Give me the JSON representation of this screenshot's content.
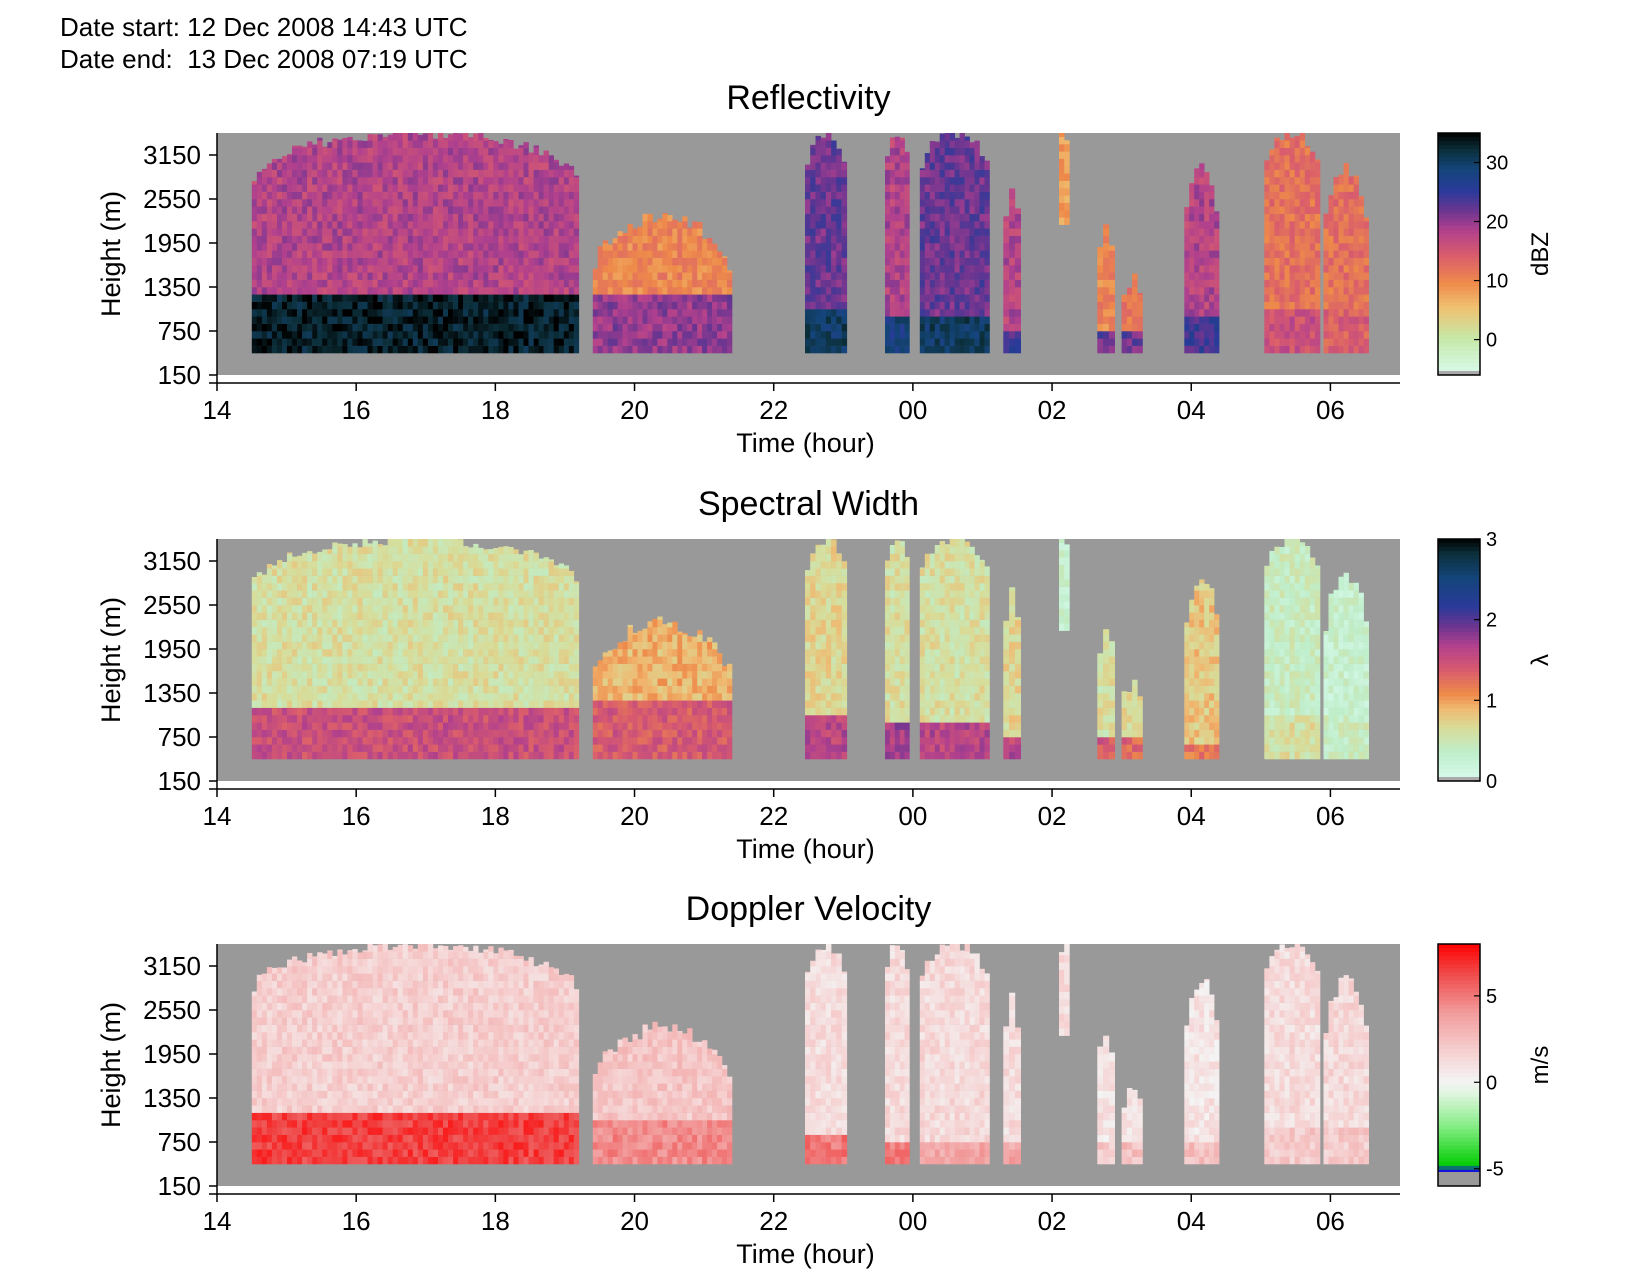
{
  "header": {
    "date_start_label": "Date start:",
    "date_start_value": "12 Dec 2008 14:43 UTC",
    "date_end_label": "Date end:",
    "date_end_value": "13 Dec 2008 07:19 UTC"
  },
  "colors": {
    "no_data": "#999999",
    "background": "#ffffff"
  },
  "chart_data": [
    {
      "type": "heatmap",
      "title": "Reflectivity",
      "xlabel": "Time (hour)",
      "ylabel": "Height (m)",
      "x_tick_labels": [
        "14",
        "16",
        "18",
        "20",
        "22",
        "00",
        "02",
        "04",
        "06"
      ],
      "y_tick_labels": [
        "3150",
        "2550",
        "1950",
        "1350",
        "750",
        "150"
      ],
      "y_ticks": [
        3150,
        2550,
        1950,
        1350,
        750,
        150
      ],
      "xlim_hours": [
        14,
        31
      ],
      "ylim": [
        150,
        3450
      ],
      "colorbar": {
        "label": "dBZ",
        "ticks": [
          30,
          20,
          10,
          0
        ],
        "range": [
          -6,
          35
        ],
        "colormap": "reflectivity"
      },
      "echo_segments": [
        {
          "start": 14.5,
          "end": 19.2,
          "base_m": 450,
          "top_m": 3450,
          "lower_top_m": 1200,
          "upper_value": 18,
          "lower_value": 33
        },
        {
          "start": 19.4,
          "end": 21.4,
          "base_m": 450,
          "top_m": 2300,
          "lower_top_m": 1200,
          "upper_value": 10,
          "lower_value": 20
        },
        {
          "start": 22.45,
          "end": 23.05,
          "base_m": 450,
          "top_m": 3450,
          "lower_top_m": 1000,
          "upper_value": 22,
          "lower_value": 30
        },
        {
          "start": 23.6,
          "end": 23.95,
          "base_m": 450,
          "top_m": 3450,
          "lower_top_m": 900,
          "upper_value": 18,
          "lower_value": 28
        },
        {
          "start": 24.1,
          "end": 25.1,
          "base_m": 450,
          "top_m": 3450,
          "lower_top_m": 900,
          "upper_value": 22,
          "lower_value": 30
        },
        {
          "start": 25.3,
          "end": 25.55,
          "base_m": 450,
          "top_m": 2700,
          "lower_top_m": 700,
          "upper_value": 18,
          "lower_value": 24
        },
        {
          "start": 26.1,
          "end": 26.25,
          "base_m": 2200,
          "top_m": 3450,
          "lower_top_m": 2200,
          "upper_value": 8,
          "lower_value": 8
        },
        {
          "start": 26.65,
          "end": 26.9,
          "base_m": 450,
          "top_m": 2200,
          "lower_top_m": 750,
          "upper_value": 10,
          "lower_value": 22
        },
        {
          "start": 27.0,
          "end": 27.3,
          "base_m": 450,
          "top_m": 1450,
          "lower_top_m": 750,
          "upper_value": 12,
          "lower_value": 22
        },
        {
          "start": 27.9,
          "end": 28.4,
          "base_m": 450,
          "top_m": 2950,
          "lower_top_m": 900,
          "upper_value": 18,
          "lower_value": 24
        },
        {
          "start": 29.05,
          "end": 29.85,
          "base_m": 450,
          "top_m": 3450,
          "lower_top_m": 1000,
          "upper_value": 12,
          "lower_value": 16
        },
        {
          "start": 29.9,
          "end": 30.55,
          "base_m": 450,
          "top_m": 2950,
          "lower_top_m": 1000,
          "upper_value": 12,
          "lower_value": 14
        }
      ]
    },
    {
      "type": "heatmap",
      "title": "Spectral Width",
      "xlabel": "Time (hour)",
      "ylabel": "Height (m)",
      "x_tick_labels": [
        "14",
        "16",
        "18",
        "20",
        "22",
        "00",
        "02",
        "04",
        "06"
      ],
      "y_tick_labels": [
        "3150",
        "2550",
        "1950",
        "1350",
        "750",
        "150"
      ],
      "y_ticks": [
        3150,
        2550,
        1950,
        1350,
        750,
        150
      ],
      "xlim_hours": [
        14,
        31
      ],
      "ylim": [
        150,
        3450
      ],
      "colorbar": {
        "label": "λ",
        "ticks": [
          3,
          2,
          1,
          0
        ],
        "range": [
          0,
          3
        ],
        "colormap": "width"
      },
      "echo_segments": [
        {
          "start": 14.5,
          "end": 19.2,
          "base_m": 450,
          "top_m": 3450,
          "lower_top_m": 1100,
          "upper_value": 0.6,
          "lower_value": 1.5
        },
        {
          "start": 19.4,
          "end": 21.4,
          "base_m": 450,
          "top_m": 2300,
          "lower_top_m": 1200,
          "upper_value": 0.9,
          "lower_value": 1.4
        },
        {
          "start": 22.45,
          "end": 23.05,
          "base_m": 450,
          "top_m": 3450,
          "lower_top_m": 1000,
          "upper_value": 0.7,
          "lower_value": 1.6
        },
        {
          "start": 23.6,
          "end": 23.95,
          "base_m": 450,
          "top_m": 3450,
          "lower_top_m": 900,
          "upper_value": 0.6,
          "lower_value": 1.7
        },
        {
          "start": 24.1,
          "end": 25.1,
          "base_m": 450,
          "top_m": 3450,
          "lower_top_m": 900,
          "upper_value": 0.6,
          "lower_value": 1.6
        },
        {
          "start": 25.3,
          "end": 25.55,
          "base_m": 450,
          "top_m": 2700,
          "lower_top_m": 700,
          "upper_value": 0.7,
          "lower_value": 1.6
        },
        {
          "start": 26.1,
          "end": 26.25,
          "base_m": 2200,
          "top_m": 3450,
          "lower_top_m": 2200,
          "upper_value": 0.3,
          "lower_value": 0.3
        },
        {
          "start": 26.65,
          "end": 26.9,
          "base_m": 450,
          "top_m": 2200,
          "lower_top_m": 750,
          "upper_value": 0.6,
          "lower_value": 1.4
        },
        {
          "start": 27.0,
          "end": 27.3,
          "base_m": 450,
          "top_m": 1450,
          "lower_top_m": 750,
          "upper_value": 0.7,
          "lower_value": 1.3
        },
        {
          "start": 27.9,
          "end": 28.4,
          "base_m": 450,
          "top_m": 2950,
          "lower_top_m": 650,
          "upper_value": 0.8,
          "lower_value": 1.2
        },
        {
          "start": 29.05,
          "end": 29.85,
          "base_m": 450,
          "top_m": 3450,
          "lower_top_m": 1000,
          "upper_value": 0.4,
          "lower_value": 0.6
        },
        {
          "start": 29.9,
          "end": 30.55,
          "base_m": 450,
          "top_m": 2950,
          "lower_top_m": 1000,
          "upper_value": 0.3,
          "lower_value": 0.4
        }
      ]
    },
    {
      "type": "heatmap",
      "title": "Doppler Velocity",
      "xlabel": "Time (hour)",
      "ylabel": "Height (m)",
      "x_tick_labels": [
        "14",
        "16",
        "18",
        "20",
        "22",
        "00",
        "02",
        "04",
        "06"
      ],
      "y_tick_labels": [
        "3150",
        "2550",
        "1950",
        "1350",
        "750",
        "150"
      ],
      "y_ticks": [
        3150,
        2550,
        1950,
        1350,
        750,
        150
      ],
      "xlim_hours": [
        14,
        31
      ],
      "ylim": [
        150,
        3450
      ],
      "colorbar": {
        "label": "m/s",
        "ticks": [
          5,
          0,
          -5
        ],
        "range": [
          -6,
          8
        ],
        "colormap": "velocity"
      },
      "echo_segments": [
        {
          "start": 14.5,
          "end": 19.2,
          "base_m": 450,
          "top_m": 3450,
          "lower_top_m": 1100,
          "upper_value": 1.8,
          "lower_value": 6.5
        },
        {
          "start": 19.4,
          "end": 21.4,
          "base_m": 450,
          "top_m": 2300,
          "lower_top_m": 1000,
          "upper_value": 2.2,
          "lower_value": 4.5
        },
        {
          "start": 22.45,
          "end": 23.05,
          "base_m": 450,
          "top_m": 3450,
          "lower_top_m": 800,
          "upper_value": 1.2,
          "lower_value": 5
        },
        {
          "start": 23.6,
          "end": 23.95,
          "base_m": 450,
          "top_m": 3450,
          "lower_top_m": 750,
          "upper_value": 1.2,
          "lower_value": 5
        },
        {
          "start": 24.1,
          "end": 25.1,
          "base_m": 450,
          "top_m": 3450,
          "lower_top_m": 750,
          "upper_value": 1.3,
          "lower_value": 3.5
        },
        {
          "start": 25.3,
          "end": 25.55,
          "base_m": 450,
          "top_m": 2700,
          "lower_top_m": 700,
          "upper_value": 1.2,
          "lower_value": 3.5
        },
        {
          "start": 26.1,
          "end": 26.25,
          "base_m": 2200,
          "top_m": 3450,
          "lower_top_m": 2200,
          "upper_value": 1.2,
          "lower_value": 1.2
        },
        {
          "start": 26.65,
          "end": 26.9,
          "base_m": 450,
          "top_m": 2200,
          "lower_top_m": 750,
          "upper_value": 0.8,
          "lower_value": 2
        },
        {
          "start": 27.0,
          "end": 27.3,
          "base_m": 450,
          "top_m": 1450,
          "lower_top_m": 750,
          "upper_value": 1,
          "lower_value": 2.5
        },
        {
          "start": 27.9,
          "end": 28.4,
          "base_m": 450,
          "top_m": 2950,
          "lower_top_m": 750,
          "upper_value": 0.8,
          "lower_value": 2.5
        },
        {
          "start": 29.05,
          "end": 29.85,
          "base_m": 450,
          "top_m": 3450,
          "lower_top_m": 900,
          "upper_value": 1.2,
          "lower_value": 2
        },
        {
          "start": 29.9,
          "end": 30.55,
          "base_m": 450,
          "top_m": 2950,
          "lower_top_m": 900,
          "upper_value": 1.3,
          "lower_value": 2
        }
      ]
    }
  ]
}
